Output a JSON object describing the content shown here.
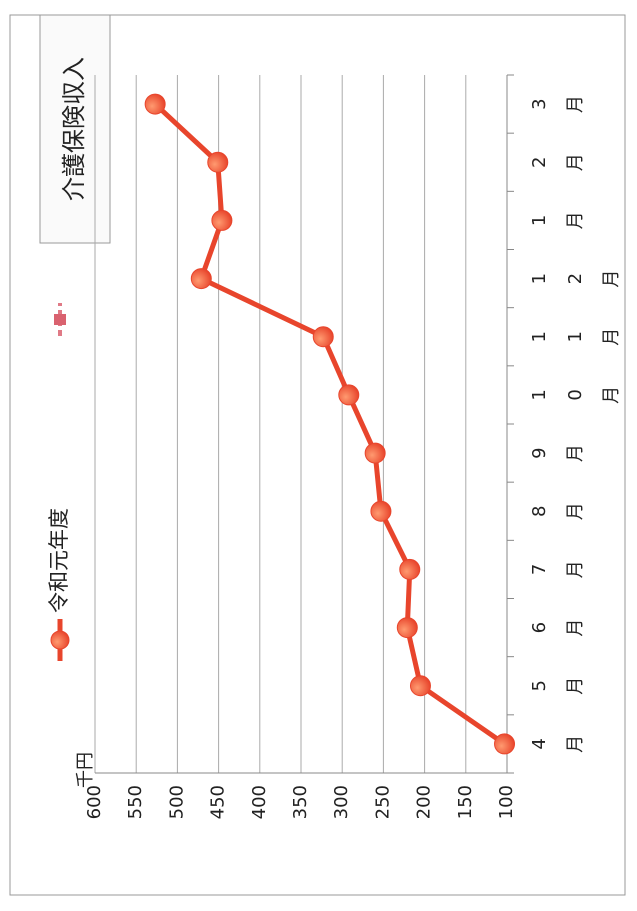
{
  "chart_data": {
    "type": "line",
    "title": "介護保険収入",
    "unit_label": "千円",
    "categories": [
      "4月",
      "5月",
      "6月",
      "7月",
      "8月",
      "9月",
      "10月",
      "11月",
      "12月",
      "1月",
      "2月",
      "3月"
    ],
    "series": [
      {
        "name": "令和元年度",
        "color": "#e8452c",
        "values": [
          103,
          205,
          221,
          218,
          253,
          260,
          292,
          323,
          471,
          446,
          451,
          527
        ]
      }
    ],
    "ylim": [
      100,
      600
    ],
    "yticks": [
      100,
      150,
      200,
      250,
      300,
      350,
      400,
      450,
      500,
      550,
      600
    ],
    "grid": true
  }
}
